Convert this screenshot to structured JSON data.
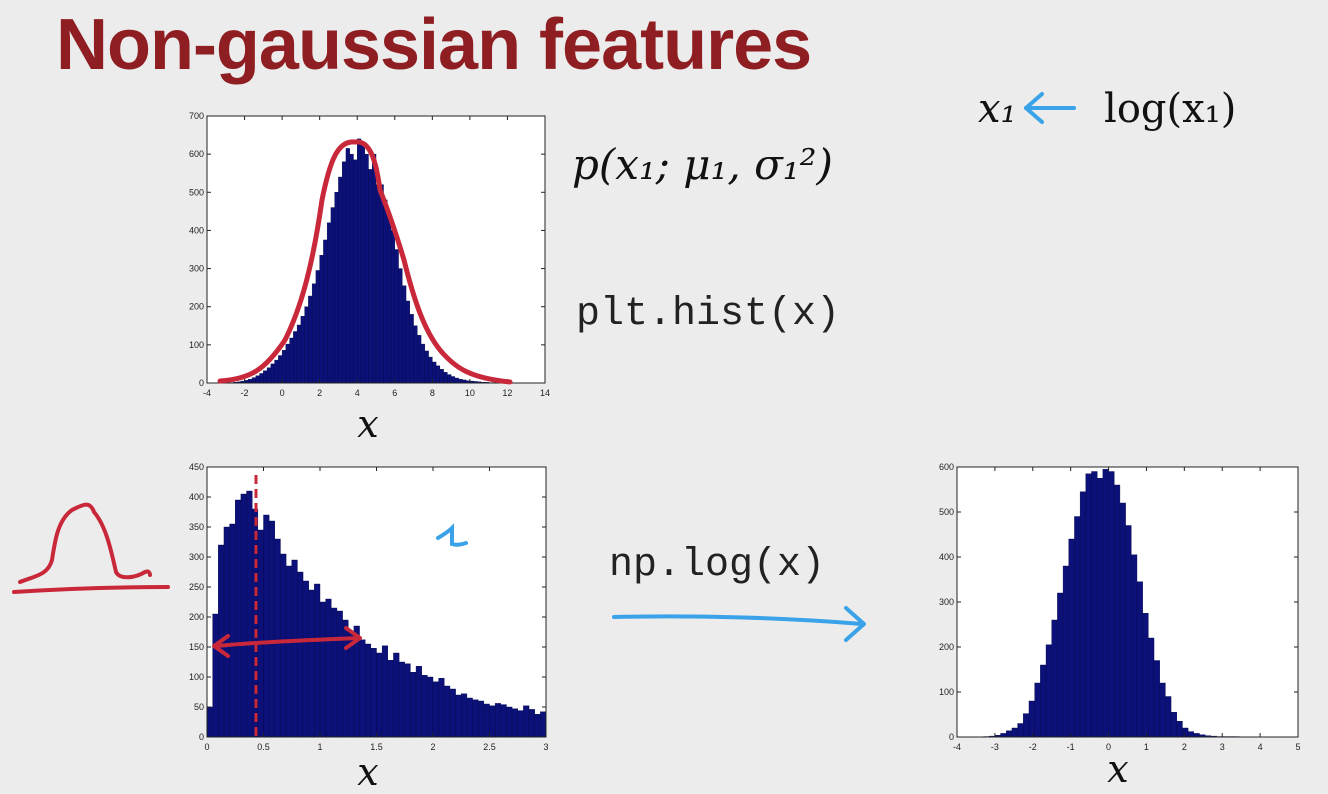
{
  "slide": {
    "title": "Non-gaussian features",
    "density_notation": "p(x₁; μ₁, σ₁²)",
    "hist_code": "plt.hist(x)",
    "log_code": "np.log(x)",
    "transform_lhs": "x₁",
    "transform_rhs": "log(x₁)",
    "handwritten_label": "x₁"
  },
  "colors": {
    "bar": "#0b1178",
    "bar_edge": "#05084a",
    "annotation_red": "#c8283a",
    "annotation_blue": "#3aa2e8",
    "title": "#8f1e22"
  },
  "chart_data": [
    {
      "type": "bar",
      "name": "gaussian-histogram",
      "xlabel": "x",
      "xlim": [
        -4,
        14
      ],
      "ylim": [
        0,
        700
      ],
      "xticks": [
        -4,
        -2,
        0,
        2,
        4,
        6,
        8,
        10,
        12,
        14
      ],
      "yticks": [
        0,
        100,
        200,
        300,
        400,
        500,
        600,
        700
      ],
      "bin_start": -2.6,
      "bin_width": 0.2,
      "values": [
        2,
        3,
        5,
        7,
        10,
        14,
        19,
        25,
        32,
        40,
        50,
        60,
        72,
        86,
        102,
        118,
        135,
        152,
        175,
        200,
        228,
        260,
        295,
        335,
        375,
        420,
        460,
        500,
        540,
        580,
        615,
        600,
        585,
        640,
        625,
        600,
        560,
        600,
        520,
        520,
        480,
        440,
        400,
        350,
        300,
        255,
        215,
        180,
        150,
        125,
        102,
        84,
        68,
        55,
        45,
        36,
        28,
        22,
        17,
        13,
        10,
        8,
        6,
        5,
        4,
        3,
        2,
        2,
        1,
        1,
        1,
        1
      ]
    },
    {
      "type": "bar",
      "name": "skewed-histogram",
      "xlabel": "x",
      "xlim": [
        0,
        3
      ],
      "ylim": [
        0,
        450
      ],
      "xticks": [
        0,
        0.5,
        1,
        1.5,
        2,
        2.5,
        3
      ],
      "yticks": [
        0,
        50,
        100,
        150,
        200,
        250,
        300,
        350,
        400,
        450
      ],
      "bin_start": 0,
      "bin_width": 0.05,
      "values": [
        50,
        205,
        320,
        350,
        355,
        395,
        405,
        410,
        380,
        345,
        370,
        360,
        330,
        305,
        285,
        295,
        275,
        260,
        245,
        255,
        225,
        230,
        215,
        210,
        195,
        175,
        185,
        162,
        155,
        148,
        140,
        152,
        128,
        140,
        125,
        122,
        108,
        118,
        103,
        100,
        92,
        98,
        85,
        80,
        70,
        72,
        65,
        62,
        60,
        55,
        52,
        56,
        54,
        50,
        47,
        44,
        52,
        46,
        38,
        42
      ]
    },
    {
      "type": "bar",
      "name": "log-transformed-histogram",
      "xlabel": "x",
      "xlim": [
        -4,
        5
      ],
      "ylim": [
        0,
        600
      ],
      "xticks": [
        -4,
        -3,
        -2,
        -1,
        0,
        1,
        2,
        3,
        4,
        5
      ],
      "yticks": [
        0,
        100,
        200,
        300,
        400,
        500,
        600
      ],
      "bin_start": -3.3,
      "bin_width": 0.15,
      "values": [
        1,
        2,
        4,
        8,
        14,
        20,
        30,
        52,
        80,
        120,
        160,
        205,
        260,
        320,
        380,
        440,
        490,
        545,
        585,
        590,
        575,
        595,
        590,
        560,
        520,
        470,
        405,
        345,
        275,
        220,
        170,
        120,
        90,
        55,
        35,
        20,
        12,
        8,
        5,
        3,
        2,
        1,
        1,
        1,
        1
      ]
    }
  ]
}
